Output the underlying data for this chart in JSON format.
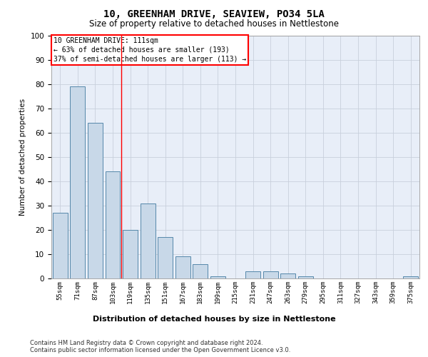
{
  "title_line1": "10, GREENHAM DRIVE, SEAVIEW, PO34 5LA",
  "title_line2": "Size of property relative to detached houses in Nettlestone",
  "xlabel": "Distribution of detached houses by size in Nettlestone",
  "ylabel": "Number of detached properties",
  "categories": [
    "55sqm",
    "71sqm",
    "87sqm",
    "103sqm",
    "119sqm",
    "135sqm",
    "151sqm",
    "167sqm",
    "183sqm",
    "199sqm",
    "215sqm",
    "231sqm",
    "247sqm",
    "263sqm",
    "279sqm",
    "295sqm",
    "311sqm",
    "327sqm",
    "343sqm",
    "359sqm",
    "375sqm"
  ],
  "values": [
    27,
    79,
    64,
    44,
    20,
    31,
    17,
    9,
    6,
    1,
    0,
    3,
    3,
    2,
    1,
    0,
    0,
    0,
    0,
    0,
    1
  ],
  "bar_color": "#c8d8e8",
  "bar_edge_color": "#5588aa",
  "grid_color": "#c8d0dc",
  "background_color": "#ffffff",
  "plot_bg_color": "#e8eef8",
  "ylim": [
    0,
    100
  ],
  "yticks": [
    0,
    10,
    20,
    30,
    40,
    50,
    60,
    70,
    80,
    90,
    100
  ],
  "annotation_line1": "10 GREENHAM DRIVE: 111sqm",
  "annotation_line2": "← 63% of detached houses are smaller (193)",
  "annotation_line3": "37% of semi-detached houses are larger (113) →",
  "red_line_x": 3.5,
  "footer_line1": "Contains HM Land Registry data © Crown copyright and database right 2024.",
  "footer_line2": "Contains public sector information licensed under the Open Government Licence v3.0."
}
